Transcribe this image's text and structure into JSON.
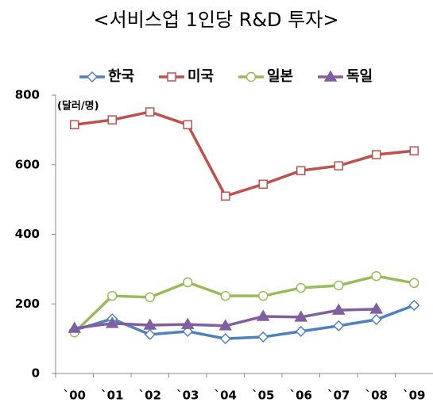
{
  "chart_data": {
    "type": "line",
    "title": "<서비스업 1인당 R&D 투자>",
    "annotation": "(달러/명)",
    "categories": [
      "`00",
      "`01",
      "`02",
      "`03",
      "`04",
      "`05",
      "`06",
      "`07",
      "`08",
      "`09"
    ],
    "series": [
      {
        "name": "한국",
        "color": "#4f81bd",
        "marker": "diamond",
        "values": [
          125,
          157,
          112,
          121,
          100,
          105,
          121,
          137,
          155,
          196
        ]
      },
      {
        "name": "미국",
        "color": "#c0504d",
        "marker": "square",
        "values": [
          715,
          729,
          752,
          715,
          510,
          544,
          583,
          597,
          629,
          640
        ]
      },
      {
        "name": "일본",
        "color": "#9bbb59",
        "marker": "circle",
        "values": [
          118,
          223,
          219,
          262,
          223,
          223,
          246,
          253,
          280,
          260
        ]
      },
      {
        "name": "독일",
        "color": "#7f5f9f",
        "marker": "triangle",
        "values": [
          130,
          144,
          139,
          141,
          137,
          164,
          162,
          182,
          185,
          null
        ]
      }
    ],
    "ylim": [
      0,
      800
    ],
    "yticks": [
      0,
      200,
      400,
      600,
      800
    ],
    "grid": false
  }
}
